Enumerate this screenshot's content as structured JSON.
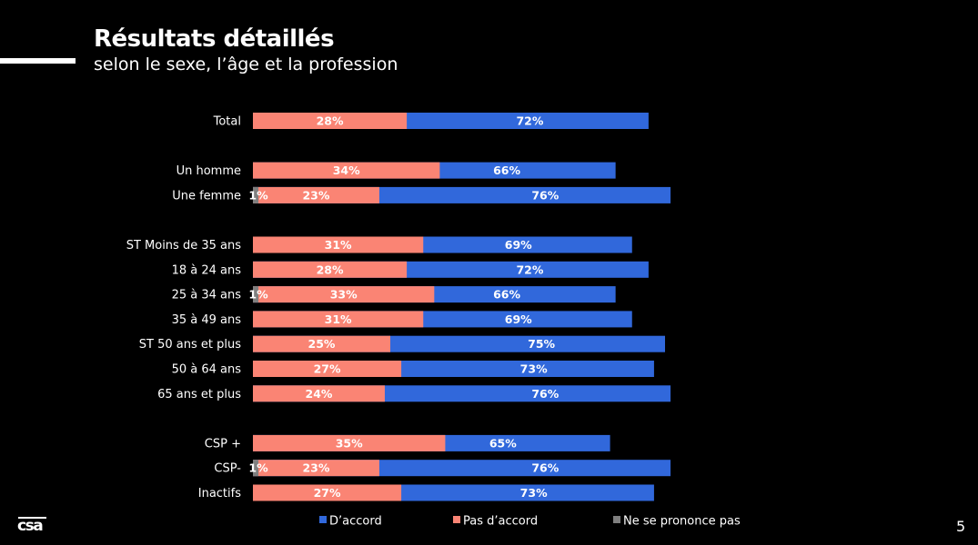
{
  "header": {
    "title": "Résultats détaillés",
    "subtitle": "selon le sexe, l’âge et la profession"
  },
  "footer": {
    "logo_text": "csa",
    "page_number": "5"
  },
  "chart_data": {
    "type": "bar",
    "orientation": "horizontal",
    "stacked": true,
    "title": "Résultats détaillés",
    "subtitle": "selon le sexe, l’âge et la profession",
    "xlabel": "",
    "ylabel": "",
    "xlim": [
      0,
      100
    ],
    "grid": false,
    "legend_position": "bottom",
    "value_suffix": "%",
    "categories": [
      "Total",
      "Un homme",
      "Une femme",
      "ST Moins de 35 ans",
      "18 à 24 ans",
      "25 à 34 ans",
      "35 à 49 ans",
      "ST 50 ans et plus",
      "50 à 64 ans",
      "65 ans et plus",
      "CSP +",
      "CSP-",
      "Inactifs"
    ],
    "groups": [
      [
        0
      ],
      [
        1,
        2
      ],
      [
        3,
        4,
        5,
        6,
        7,
        8,
        9
      ],
      [
        10,
        11,
        12
      ]
    ],
    "series": [
      {
        "name": "D’accord",
        "color": "#3168DB",
        "values": [
          72,
          66,
          76,
          69,
          72,
          66,
          69,
          75,
          73,
          76,
          65,
          76,
          73
        ]
      },
      {
        "name": "Pas d’accord",
        "color": "#FA8474",
        "values": [
          28,
          34,
          23,
          31,
          28,
          33,
          31,
          25,
          27,
          24,
          35,
          23,
          27
        ]
      },
      {
        "name": "Ne se prononce pas",
        "color": "#7F7F7F",
        "values": [
          0,
          0,
          1,
          0,
          0,
          1,
          0,
          0,
          0,
          0,
          0,
          1,
          0
        ]
      }
    ]
  }
}
